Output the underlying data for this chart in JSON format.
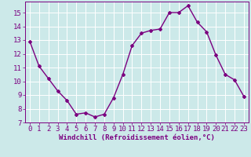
{
  "x": [
    0,
    1,
    2,
    3,
    4,
    5,
    6,
    7,
    8,
    9,
    10,
    11,
    12,
    13,
    14,
    15,
    16,
    17,
    18,
    19,
    20,
    21,
    22,
    23
  ],
  "y": [
    12.9,
    11.1,
    10.2,
    9.3,
    8.6,
    7.6,
    7.7,
    7.4,
    7.6,
    8.8,
    10.5,
    12.6,
    13.5,
    13.7,
    13.8,
    15.0,
    15.0,
    15.5,
    14.3,
    13.6,
    11.9,
    10.5,
    10.1,
    8.9
  ],
  "line_color": "#7b0080",
  "marker": "D",
  "marker_size": 2,
  "line_width": 1.0,
  "bg_color": "#cce9e9",
  "grid_color": "#ffffff",
  "xlabel": "Windchill (Refroidissement éolien,°C)",
  "xlabel_color": "#7b0080",
  "tick_color": "#7b0080",
  "ylim": [
    7,
    15.8
  ],
  "xlim": [
    -0.5,
    23.5
  ],
  "yticks": [
    7,
    8,
    9,
    10,
    11,
    12,
    13,
    14,
    15
  ],
  "xticks": [
    0,
    1,
    2,
    3,
    4,
    5,
    6,
    7,
    8,
    9,
    10,
    11,
    12,
    13,
    14,
    15,
    16,
    17,
    18,
    19,
    20,
    21,
    22,
    23
  ],
  "font_size": 6.5
}
